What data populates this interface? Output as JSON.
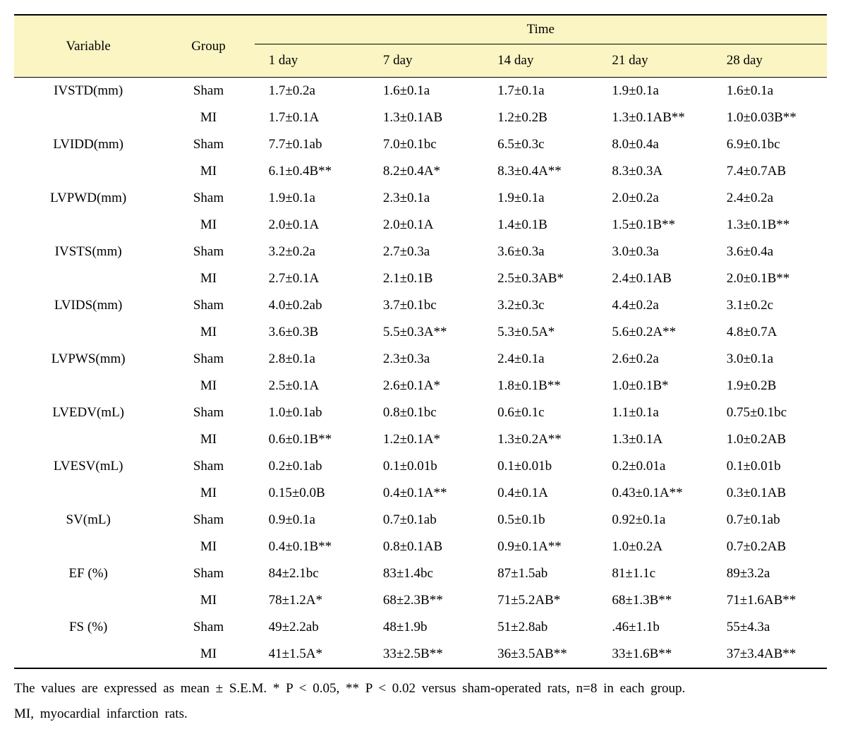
{
  "colors": {
    "header_bg": "#fbf5c3",
    "text": "#000000",
    "background": "#ffffff",
    "rule": "#000000"
  },
  "typography": {
    "font_family": "Times New Roman",
    "font_size_pt": 14,
    "footnote_size_pt": 14
  },
  "header": {
    "variable": "Variable",
    "group": "Group",
    "time": "Time",
    "time_cols": [
      "1 day",
      "7 day",
      "14 day",
      "21 day",
      "28 day"
    ]
  },
  "variables": [
    {
      "name": "IVSTD(mm)",
      "rows": [
        {
          "group": "Sham",
          "vals": [
            "1.7±0.2a",
            "1.6±0.1a",
            "1.7±0.1a",
            "1.9±0.1a",
            "1.6±0.1a"
          ]
        },
        {
          "group": "MI",
          "vals": [
            "1.7±0.1A",
            "1.3±0.1AB",
            "1.2±0.2B",
            "1.3±0.1AB**",
            "1.0±0.03B**"
          ]
        }
      ]
    },
    {
      "name": "LVIDD(mm)",
      "rows": [
        {
          "group": "Sham",
          "vals": [
            "7.7±0.1ab",
            "7.0±0.1bc",
            "6.5±0.3c",
            "8.0±0.4a",
            "6.9±0.1bc"
          ]
        },
        {
          "group": "MI",
          "vals": [
            "6.1±0.4B**",
            "8.2±0.4A*",
            "8.3±0.4A**",
            "8.3±0.3A",
            "7.4±0.7AB"
          ]
        }
      ]
    },
    {
      "name": "LVPWD(mm)",
      "rows": [
        {
          "group": "Sham",
          "vals": [
            "1.9±0.1a",
            "2.3±0.1a",
            "1.9±0.1a",
            "2.0±0.2a",
            "2.4±0.2a"
          ]
        },
        {
          "group": "MI",
          "vals": [
            "2.0±0.1A",
            "2.0±0.1A",
            "1.4±0.1B",
            "1.5±0.1B**",
            "1.3±0.1B**"
          ]
        }
      ]
    },
    {
      "name": "IVSTS(mm)",
      "rows": [
        {
          "group": "Sham",
          "vals": [
            "3.2±0.2a",
            "2.7±0.3a",
            "3.6±0.3a",
            "3.0±0.3a",
            "3.6±0.4a"
          ]
        },
        {
          "group": "MI",
          "vals": [
            "2.7±0.1A",
            "2.1±0.1B",
            "2.5±0.3AB*",
            "2.4±0.1AB",
            "2.0±0.1B**"
          ]
        }
      ]
    },
    {
      "name": "LVIDS(mm)",
      "rows": [
        {
          "group": "Sham",
          "vals": [
            "4.0±0.2ab",
            "3.7±0.1bc",
            "3.2±0.3c",
            "4.4±0.2a",
            "3.1±0.2c"
          ]
        },
        {
          "group": "MI",
          "vals": [
            "3.6±0.3B",
            "5.5±0.3A**",
            "5.3±0.5A*",
            "5.6±0.2A**",
            "4.8±0.7A"
          ]
        }
      ]
    },
    {
      "name": "LVPWS(mm)",
      "rows": [
        {
          "group": "Sham",
          "vals": [
            "2.8±0.1a",
            "2.3±0.3a",
            "2.4±0.1a",
            "2.6±0.2a",
            "3.0±0.1a"
          ]
        },
        {
          "group": "MI",
          "vals": [
            "2.5±0.1A",
            "2.6±0.1A*",
            "1.8±0.1B**",
            "1.0±0.1B*",
            "1.9±0.2B"
          ]
        }
      ]
    },
    {
      "name": "LVEDV(mL)",
      "rows": [
        {
          "group": "Sham",
          "vals": [
            "1.0±0.1ab",
            "0.8±0.1bc",
            "0.6±0.1c",
            "1.1±0.1a",
            "0.75±0.1bc"
          ]
        },
        {
          "group": "MI",
          "vals": [
            "0.6±0.1B**",
            "1.2±0.1A*",
            "1.3±0.2A**",
            "1.3±0.1A",
            "1.0±0.2AB"
          ]
        }
      ]
    },
    {
      "name": "LVESV(mL)",
      "rows": [
        {
          "group": "Sham",
          "vals": [
            "0.2±0.1ab",
            "0.1±0.01b",
            "0.1±0.01b",
            "0.2±0.01a",
            "0.1±0.01b"
          ]
        },
        {
          "group": "MI",
          "vals": [
            "0.15±0.0B",
            "0.4±0.1A**",
            "0.4±0.1A",
            "0.43±0.1A**",
            "0.3±0.1AB"
          ]
        }
      ]
    },
    {
      "name": "SV(mL)",
      "rows": [
        {
          "group": "Sham",
          "vals": [
            "0.9±0.1a",
            "0.7±0.1ab",
            "0.5±0.1b",
            "0.92±0.1a",
            "0.7±0.1ab"
          ]
        },
        {
          "group": "MI",
          "vals": [
            "0.4±0.1B**",
            "0.8±0.1AB",
            "0.9±0.1A**",
            "1.0±0.2A",
            "0.7±0.2AB"
          ]
        }
      ]
    },
    {
      "name": "EF (%)",
      "rows": [
        {
          "group": "Sham",
          "vals": [
            "84±2.1bc",
            "83±1.4bc",
            "87±1.5ab",
            "81±1.1c",
            "89±3.2a"
          ]
        },
        {
          "group": "MI",
          "vals": [
            "78±1.2A*",
            "68±2.3B**",
            "71±5.2AB*",
            "68±1.3B**",
            "71±1.6AB**"
          ]
        }
      ]
    },
    {
      "name": "FS (%)",
      "rows": [
        {
          "group": "Sham",
          "vals": [
            "49±2.2ab",
            "48±1.9b",
            "51±2.8ab",
            ".46±1.1b",
            "55±4.3a"
          ]
        },
        {
          "group": "MI",
          "vals": [
            "41±1.5A*",
            "33±2.5B**",
            "36±3.5AB**",
            "33±1.6B**",
            "37±3.4AB**"
          ]
        }
      ]
    }
  ],
  "footnote": {
    "line1": "The values are expressed as mean ± S.E.M. * P < 0.05, ** P < 0.02 versus sham-operated rats, n=8 in each group.",
    "line2": "MI, myocardial infarction rats."
  }
}
